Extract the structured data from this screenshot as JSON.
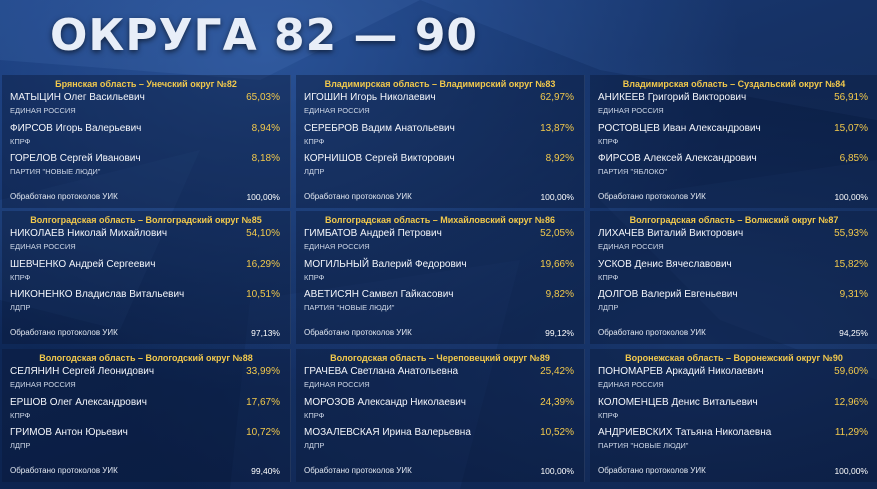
{
  "title": "ОКРУГА 82 — 90",
  "processed_label": "Обработано протоколов УИК",
  "colors": {
    "accent": "#f2c94c",
    "background": "#0e2756",
    "text": "#f4f6fb"
  },
  "districts": [
    {
      "header": "Брянская область – Унечский округ №82",
      "candidates": [
        {
          "name": "МАТЫЦИН Олег Васильевич",
          "party": "ЕДИНАЯ РОССИЯ",
          "pct": "65,03%"
        },
        {
          "name": "ФИРСОВ Игорь Валерьевич",
          "party": "КПРФ",
          "pct": "8,94%"
        },
        {
          "name": "ГОРЕЛОВ Сергей Иванович",
          "party": "ПАРТИЯ \"НОВЫЕ ЛЮДИ\"",
          "pct": "8,18%"
        }
      ],
      "processed": "100,00%"
    },
    {
      "header": "Владимирская область – Владимирский округ №83",
      "candidates": [
        {
          "name": "ИГОШИН Игорь Николаевич",
          "party": "ЕДИНАЯ РОССИЯ",
          "pct": "62,97%"
        },
        {
          "name": "СЕРЕБРОВ Вадим Анатольевич",
          "party": "КПРФ",
          "pct": "13,87%"
        },
        {
          "name": "КОРНИШОВ Сергей Викторович",
          "party": "ЛДПР",
          "pct": "8,92%"
        }
      ],
      "processed": "100,00%"
    },
    {
      "header": "Владимирская область – Суздальский округ №84",
      "candidates": [
        {
          "name": "АНИКЕЕВ Григорий Викторович",
          "party": "ЕДИНАЯ РОССИЯ",
          "pct": "56,91%"
        },
        {
          "name": "РОСТОВЦЕВ Иван Александрович",
          "party": "КПРФ",
          "pct": "15,07%"
        },
        {
          "name": "ФИРСОВ Алексей Александрович",
          "party": "ПАРТИЯ \"ЯБЛОКО\"",
          "pct": "6,85%"
        }
      ],
      "processed": "100,00%"
    },
    {
      "header": "Волгоградская область – Волгоградский округ №85",
      "candidates": [
        {
          "name": "НИКОЛАЕВ Николай Михайлович",
          "party": "ЕДИНАЯ РОССИЯ",
          "pct": "54,10%"
        },
        {
          "name": "ШЕВЧЕНКО Андрей Сергеевич",
          "party": "КПРФ",
          "pct": "16,29%"
        },
        {
          "name": "НИКОНЕНКО Владислав Витальевич",
          "party": "ЛДПР",
          "pct": "10,51%"
        }
      ],
      "processed": "97,13%"
    },
    {
      "header": "Волгоградская область – Михайловский округ №86",
      "candidates": [
        {
          "name": "ГИМБАТОВ Андрей Петрович",
          "party": "ЕДИНАЯ РОССИЯ",
          "pct": "52,05%"
        },
        {
          "name": "МОГИЛЬНЫЙ Валерий Федорович",
          "party": "КПРФ",
          "pct": "19,66%"
        },
        {
          "name": "АВЕТИСЯН Самвел Гайкасович",
          "party": "ПАРТИЯ \"НОВЫЕ ЛЮДИ\"",
          "pct": "9,82%"
        }
      ],
      "processed": "99,12%"
    },
    {
      "header": "Волгоградская область – Волжский округ №87",
      "candidates": [
        {
          "name": "ЛИХАЧЕВ Виталий Викторович",
          "party": "ЕДИНАЯ РОССИЯ",
          "pct": "55,93%"
        },
        {
          "name": "УСКОВ Денис Вячеславович",
          "party": "КПРФ",
          "pct": "15,82%"
        },
        {
          "name": "ДОЛГОВ Валерий Евгеньевич",
          "party": "ЛДПР",
          "pct": "9,31%"
        }
      ],
      "processed": "94,25%"
    },
    {
      "header": "Вологодская область – Вологодский округ №88",
      "candidates": [
        {
          "name": "СЕЛЯНИН Сергей Леонидович",
          "party": "ЕДИНАЯ РОССИЯ",
          "pct": "33,99%"
        },
        {
          "name": "ЕРШОВ Олег Александрович",
          "party": "КПРФ",
          "pct": "17,67%"
        },
        {
          "name": "ГРИМОВ Антон Юрьевич",
          "party": "ЛДПР",
          "pct": "10,72%"
        }
      ],
      "processed": "99,40%"
    },
    {
      "header": "Вологодская область – Череповецкий округ №89",
      "candidates": [
        {
          "name": "ГРАЧЕВА Светлана Анатольевна",
          "party": "ЕДИНАЯ РОССИЯ",
          "pct": "25,42%"
        },
        {
          "name": "МОРОЗОВ Александр Николаевич",
          "party": "КПРФ",
          "pct": "24,39%"
        },
        {
          "name": "МОЗАЛЕВСКАЯ Ирина Валерьевна",
          "party": "ЛДПР",
          "pct": "10,52%"
        }
      ],
      "processed": "100,00%"
    },
    {
      "header": "Воронежская область – Воронежский округ №90",
      "candidates": [
        {
          "name": "ПОНОМАРЕВ Аркадий Николаевич",
          "party": "ЕДИНАЯ РОССИЯ",
          "pct": "59,60%"
        },
        {
          "name": "КОЛОМЕНЦЕВ Денис Витальевич",
          "party": "КПРФ",
          "pct": "12,96%"
        },
        {
          "name": "АНДРИЕВСКИХ Татьяна Николаевна",
          "party": "ПАРТИЯ \"НОВЫЕ ЛЮДИ\"",
          "pct": "11,29%"
        }
      ],
      "processed": "100,00%"
    }
  ]
}
